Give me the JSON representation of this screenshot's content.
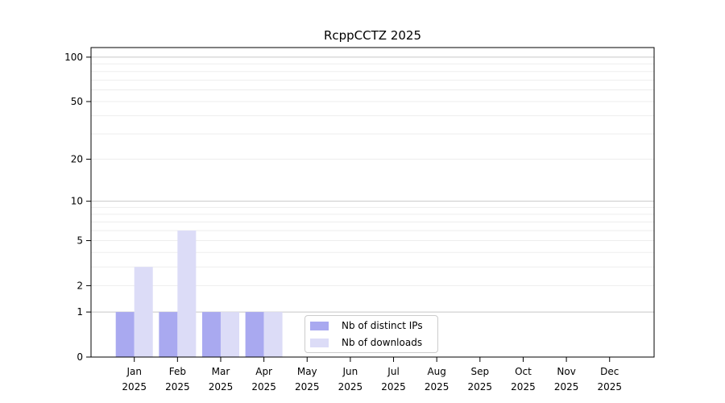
{
  "chart_data": {
    "type": "bar",
    "title": "RcppCCTZ 2025",
    "categories": [
      "Jan",
      "Feb",
      "Mar",
      "Apr",
      "May",
      "Jun",
      "Jul",
      "Aug",
      "Sep",
      "Oct",
      "Nov",
      "Dec"
    ],
    "x_tick_second_line": "2025",
    "series": [
      {
        "name": "Nb of distinct IPs",
        "color": "#a9a9f0",
        "values": [
          1,
          1,
          1,
          1,
          0,
          0,
          0,
          0,
          0,
          0,
          0,
          0
        ]
      },
      {
        "name": "Nb of downloads",
        "color": "#dcdcf7",
        "values": [
          3,
          6,
          1,
          1,
          0,
          0,
          0,
          0,
          0,
          0,
          0,
          0
        ]
      }
    ],
    "y_scale": "log1p",
    "y_ticks": [
      0,
      1,
      2,
      5,
      10,
      20,
      50,
      100
    ],
    "y_major_gridlines": [
      1,
      10,
      100
    ],
    "y_minor_gridlines": [
      2,
      3,
      4,
      5,
      6,
      7,
      8,
      9,
      20,
      30,
      40,
      50,
      60,
      70,
      80,
      90
    ],
    "ylim": [
      0,
      117
    ],
    "grid": "horizontal",
    "legend_position": "inside-bottom-center",
    "colors": {
      "axis": "#000000",
      "grid_minor": "#ededed",
      "grid_major": "#c8c8c8",
      "background": "#ffffff",
      "legend_border": "#cccccc"
    }
  }
}
